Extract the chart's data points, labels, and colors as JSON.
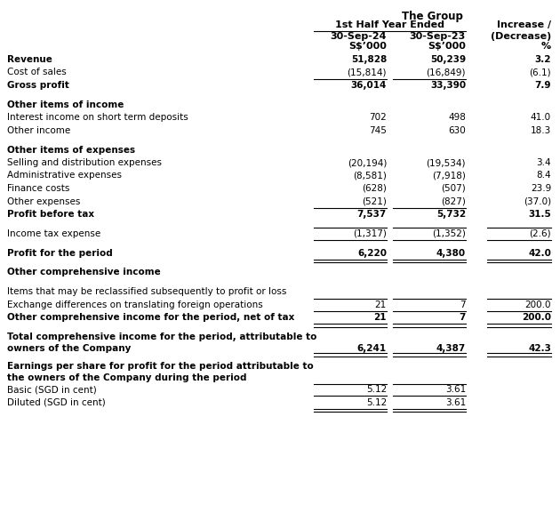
{
  "bg_color": "#ffffff",
  "text_color": "#000000",
  "title1": "The Group",
  "title2": "1st Half Year Ended",
  "h1": [
    "30-Sep-24",
    "30-Sep-23",
    "Increase /"
  ],
  "h2": [
    "S$’000",
    "S$’000",
    "(Decrease)"
  ],
  "h3": [
    "",
    "",
    "%"
  ],
  "rows": [
    {
      "label": "Revenue",
      "v1": "51,828",
      "v2": "50,239",
      "v3": "3.2",
      "bold": true,
      "line_above_12": false,
      "line_below_12": false,
      "line_below_123": false,
      "double_below": false,
      "gap_before": false
    },
    {
      "label": "Cost of sales",
      "v1": "(15,814)",
      "v2": "(16,849)",
      "v3": "(6.1)",
      "bold": false,
      "line_above_12": false,
      "line_below_12": true,
      "line_below_123": false,
      "double_below": false,
      "gap_before": false
    },
    {
      "label": "Gross profit",
      "v1": "36,014",
      "v2": "33,390",
      "v3": "7.9",
      "bold": true,
      "line_above_12": false,
      "line_below_12": false,
      "line_below_123": false,
      "double_below": false,
      "gap_before": false
    },
    {
      "label": "",
      "v1": "",
      "v2": "",
      "v3": "",
      "bold": false,
      "line_above_12": false,
      "line_below_12": false,
      "line_below_123": false,
      "double_below": false,
      "gap_before": false
    },
    {
      "label": "Other items of income",
      "v1": "",
      "v2": "",
      "v3": "",
      "bold": true,
      "line_above_12": false,
      "line_below_12": false,
      "line_below_123": false,
      "double_below": false,
      "gap_before": false
    },
    {
      "label": "Interest income on short term deposits",
      "v1": "702",
      "v2": "498",
      "v3": "41.0",
      "bold": false,
      "line_above_12": false,
      "line_below_12": false,
      "line_below_123": false,
      "double_below": false,
      "gap_before": false
    },
    {
      "label": "Other income",
      "v1": "745",
      "v2": "630",
      "v3": "18.3",
      "bold": false,
      "line_above_12": false,
      "line_below_12": false,
      "line_below_123": false,
      "double_below": false,
      "gap_before": false
    },
    {
      "label": "",
      "v1": "",
      "v2": "",
      "v3": "",
      "bold": false,
      "line_above_12": false,
      "line_below_12": false,
      "line_below_123": false,
      "double_below": false,
      "gap_before": false
    },
    {
      "label": "Other items of expenses",
      "v1": "",
      "v2": "",
      "v3": "",
      "bold": true,
      "line_above_12": false,
      "line_below_12": false,
      "line_below_123": false,
      "double_below": false,
      "gap_before": false
    },
    {
      "label": "Selling and distribution expenses",
      "v1": "(20,194)",
      "v2": "(19,534)",
      "v3": "3.4",
      "bold": false,
      "line_above_12": false,
      "line_below_12": false,
      "line_below_123": false,
      "double_below": false,
      "gap_before": false
    },
    {
      "label": "Administrative expenses",
      "v1": "(8,581)",
      "v2": "(7,918)",
      "v3": "8.4",
      "bold": false,
      "line_above_12": false,
      "line_below_12": false,
      "line_below_123": false,
      "double_below": false,
      "gap_before": false
    },
    {
      "label": "Finance costs",
      "v1": "(628)",
      "v2": "(507)",
      "v3": "23.9",
      "bold": false,
      "line_above_12": false,
      "line_below_12": false,
      "line_below_123": false,
      "double_below": false,
      "gap_before": false
    },
    {
      "label": "Other expenses",
      "v1": "(521)",
      "v2": "(827)",
      "v3": "(37.0)",
      "bold": false,
      "line_above_12": false,
      "line_below_12": true,
      "line_below_123": false,
      "double_below": false,
      "gap_before": false
    },
    {
      "label": "Profit before tax",
      "v1": "7,537",
      "v2": "5,732",
      "v3": "31.5",
      "bold": true,
      "line_above_12": false,
      "line_below_12": false,
      "line_below_123": false,
      "double_below": false,
      "gap_before": false
    },
    {
      "label": "",
      "v1": "",
      "v2": "",
      "v3": "",
      "bold": false,
      "line_above_12": false,
      "line_below_12": false,
      "line_below_123": false,
      "double_below": false,
      "gap_before": false
    },
    {
      "label": "Income tax expense",
      "v1": "(1,317)",
      "v2": "(1,352)",
      "v3": "(2.6)",
      "bold": false,
      "line_above_12": true,
      "line_below_12": true,
      "line_below_123": false,
      "double_below": false,
      "gap_before": false
    },
    {
      "label": "",
      "v1": "",
      "v2": "",
      "v3": "",
      "bold": false,
      "line_above_12": false,
      "line_below_12": false,
      "line_below_123": false,
      "double_below": false,
      "gap_before": false
    },
    {
      "label": "Profit for the period",
      "v1": "6,220",
      "v2": "4,380",
      "v3": "42.0",
      "bold": true,
      "line_above_12": false,
      "line_below_12": false,
      "line_below_123": true,
      "double_below": true,
      "gap_before": false
    },
    {
      "label": "",
      "v1": "",
      "v2": "",
      "v3": "",
      "bold": false,
      "line_above_12": false,
      "line_below_12": false,
      "line_below_123": false,
      "double_below": false,
      "gap_before": false
    },
    {
      "label": "Other comprehensive income",
      "v1": "",
      "v2": "",
      "v3": "",
      "bold": true,
      "line_above_12": false,
      "line_below_12": false,
      "line_below_123": false,
      "double_below": false,
      "gap_before": false
    },
    {
      "label": "",
      "v1": "",
      "v2": "",
      "v3": "",
      "bold": false,
      "line_above_12": false,
      "line_below_12": false,
      "line_below_123": false,
      "double_below": false,
      "gap_before": false
    },
    {
      "label": "Items that may be reclassified subsequently to profit or loss",
      "v1": "",
      "v2": "",
      "v3": "",
      "bold": false,
      "line_above_12": false,
      "line_below_12": false,
      "line_below_123": false,
      "double_below": false,
      "gap_before": false
    },
    {
      "label": "Exchange differences on translating foreign operations",
      "v1": "21",
      "v2": "7",
      "v3": "200.0",
      "bold": false,
      "line_above_12": true,
      "line_below_12": true,
      "line_below_123": false,
      "double_below": false,
      "gap_before": false
    },
    {
      "label": "Other comprehensive income for the period, net of tax",
      "v1": "21",
      "v2": "7",
      "v3": "200.0",
      "bold": true,
      "line_above_12": false,
      "line_below_12": false,
      "line_below_123": true,
      "double_below": true,
      "gap_before": false
    },
    {
      "label": "",
      "v1": "",
      "v2": "",
      "v3": "",
      "bold": false,
      "line_above_12": false,
      "line_below_12": false,
      "line_below_123": false,
      "double_below": false,
      "gap_before": false
    },
    {
      "label": "Total comprehensive income for the period, attributable to\nowners of the Company",
      "v1": "6,241",
      "v2": "4,387",
      "v3": "42.3",
      "bold": true,
      "line_above_12": false,
      "line_below_12": false,
      "line_below_123": true,
      "double_below": true,
      "gap_before": false,
      "multiline": true
    },
    {
      "label": "",
      "v1": "",
      "v2": "",
      "v3": "",
      "bold": false,
      "line_above_12": false,
      "line_below_12": false,
      "line_below_123": false,
      "double_below": false,
      "gap_before": false
    },
    {
      "label": "Earnings per share for profit for the period attributable to\nthe owners of the Company during the period",
      "v1": "",
      "v2": "",
      "v3": "",
      "bold": true,
      "line_above_12": false,
      "line_below_12": false,
      "line_below_123": false,
      "double_below": false,
      "gap_before": false,
      "multiline": true
    },
    {
      "label": "Basic (SGD in cent)",
      "v1": "5.12",
      "v2": "3.61",
      "v3": "",
      "bold": false,
      "line_above_12": true,
      "line_below_12": true,
      "line_below_123": false,
      "double_below": false,
      "gap_before": false
    },
    {
      "label": "Diluted (SGD in cent)",
      "v1": "5.12",
      "v2": "3.61",
      "v3": "",
      "bold": false,
      "line_above_12": false,
      "line_below_12": false,
      "line_below_123": false,
      "double_below": true,
      "gap_before": false
    }
  ],
  "row_heights": [
    1,
    1,
    1,
    0.5,
    1,
    1,
    1,
    0.5,
    1,
    1,
    1,
    1,
    1,
    1,
    0.5,
    1,
    0.5,
    1,
    0.5,
    1,
    0.5,
    1,
    1,
    1,
    0.5,
    1.8,
    0.5,
    1.8,
    1,
    1
  ]
}
